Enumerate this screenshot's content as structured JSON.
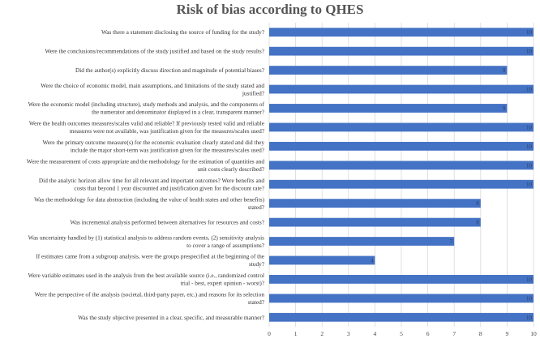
{
  "chart_data": {
    "type": "bar",
    "orientation": "horizontal",
    "title": "Risk of bias according to QHES",
    "xlabel": "",
    "ylabel": "",
    "xlim": [
      0,
      10
    ],
    "ticks": [
      0,
      1,
      2,
      3,
      4,
      5,
      6,
      7,
      8,
      9,
      10
    ],
    "grid": true,
    "legend": "none",
    "bar_color": "#4472c4",
    "categories": [
      [
        "Was there a statement disclosing the source of funding for the study?"
      ],
      [
        "Were the conclusions/recommendations of the study justified and based on the study results?"
      ],
      [
        "Did the author(s) explicitly discuss direction and magnitude of potential biases?"
      ],
      [
        "Were the choice of economic model, main assumptions, and limitations of the study stated and",
        "justified?"
      ],
      [
        "Were the economic model (including structure), study methods and analysis, and the components of",
        "the numerator and denominator displayed in a clear, transparent manner?"
      ],
      [
        "Were the health outcomes measures/scales valid and reliable? If previously tested valid and reliable",
        "measures were not available, was justification given for the measures/scales used?"
      ],
      [
        "Were the primary outcome measure(s) for the economic evaluation clearly stated and did they",
        "include the major short-term was justification given for the measures/scales used?"
      ],
      [
        "Were the measurement of costs appropriate and the methodology for the estimation of quantities and",
        "unit costs clearly described?"
      ],
      [
        "Did the analytic horizon allow time for all relevant and important outcomes? Were benefits and",
        "costs that beyond 1 year discounted and justification given for the discount rate?"
      ],
      [
        "Was the methodology for data abstraction (including the value of health states and other benefits)",
        "stated?"
      ],
      [
        "Was incremental analysis performed between alternatives for resources and costs?"
      ],
      [
        "Was uncertainty handled by (1) statistical analysis to address random events, (2) sensitivity analysis",
        "to cover a range of assumptions?"
      ],
      [
        "If estimates came from a subgroup analysis, were the groups prespecified at the beginning of the",
        "study?"
      ],
      [
        "Were variable estimates used in the analysis from the best available source (i.e., randomized control",
        "trial - best, expert opinion - worst)?"
      ],
      [
        "Were the perspective of the analysis (societal, third-party payer, etc.) and reasons for its selection",
        "stated?"
      ],
      [
        "Was the study objective presented in a clear, specific, and measurable manner?"
      ]
    ],
    "values": [
      10,
      10,
      9,
      10,
      9,
      10,
      10,
      10,
      10,
      8,
      8,
      7,
      4,
      10,
      10,
      10
    ]
  }
}
